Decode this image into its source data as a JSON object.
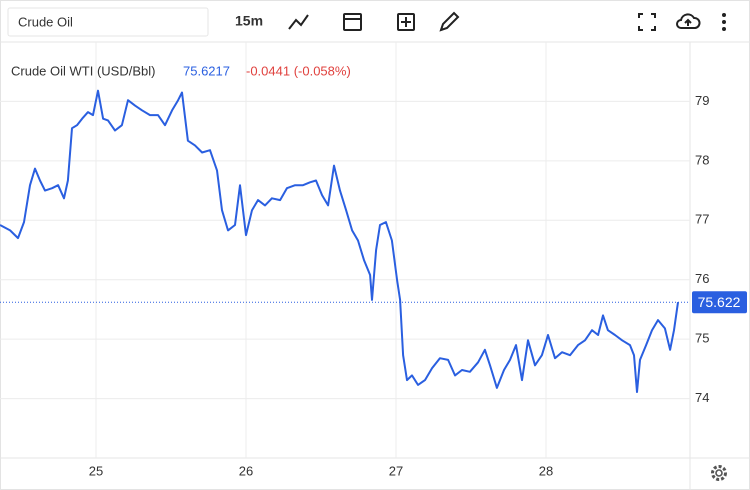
{
  "toolbar": {
    "search": "Crude Oil",
    "interval": "15m"
  },
  "chart_data": {
    "type": "line",
    "title": "Crude Oil WTI (USD/Bbl)",
    "quote": "75.6217",
    "change": "-0.0441 (-0.058%)",
    "color": "#2a5fe0",
    "grid": true,
    "x": [
      24.36,
      24.427,
      24.48,
      24.52,
      24.56,
      24.593,
      24.627,
      24.66,
      24.707,
      24.747,
      24.787,
      24.813,
      24.84,
      24.873,
      24.907,
      24.947,
      24.98,
      25.013,
      25.047,
      25.08,
      25.127,
      25.173,
      25.213,
      25.26,
      25.307,
      25.36,
      25.413,
      25.46,
      25.507,
      25.547,
      25.573,
      25.613,
      25.66,
      25.707,
      25.76,
      25.807,
      25.84,
      25.88,
      25.927,
      25.96,
      26.0,
      26.04,
      26.08,
      26.127,
      26.173,
      26.227,
      26.273,
      26.327,
      26.38,
      26.427,
      26.467,
      26.507,
      26.547,
      26.587,
      26.627,
      26.667,
      26.707,
      26.747,
      26.787,
      26.827,
      26.84,
      26.867,
      26.893,
      26.933,
      26.973,
      27.007,
      27.027,
      27.047,
      27.073,
      27.107,
      27.147,
      27.193,
      27.24,
      27.293,
      27.347,
      27.393,
      27.44,
      27.493,
      27.547,
      27.593,
      27.627,
      27.673,
      27.72,
      27.76,
      27.8,
      27.84,
      27.88,
      27.927,
      27.973,
      28.013,
      28.06,
      28.107,
      28.16,
      28.213,
      28.26,
      28.307,
      28.347,
      28.38,
      28.413,
      28.46,
      28.507,
      28.56,
      28.587,
      28.607,
      28.627,
      28.667,
      28.707,
      28.747,
      28.793,
      28.827,
      28.853,
      28.88
    ],
    "values": [
      76.92,
      76.83,
      76.7,
      76.97,
      77.59,
      77.87,
      77.67,
      77.5,
      77.54,
      77.59,
      77.37,
      77.67,
      78.55,
      78.6,
      78.71,
      78.82,
      78.77,
      79.18,
      78.71,
      78.68,
      78.51,
      78.6,
      79.02,
      78.93,
      78.85,
      78.77,
      78.77,
      78.6,
      78.85,
      79.02,
      79.15,
      78.34,
      78.26,
      78.14,
      78.18,
      77.84,
      77.17,
      76.83,
      76.92,
      77.59,
      76.75,
      77.17,
      77.34,
      77.25,
      77.37,
      77.34,
      77.54,
      77.59,
      77.59,
      77.64,
      77.67,
      77.42,
      77.25,
      77.92,
      77.5,
      77.17,
      76.83,
      76.66,
      76.33,
      76.08,
      75.66,
      76.5,
      76.92,
      76.97,
      76.66,
      75.99,
      75.66,
      74.73,
      74.31,
      74.39,
      74.23,
      74.31,
      74.51,
      74.68,
      74.65,
      74.39,
      74.48,
      74.45,
      74.61,
      74.82,
      74.56,
      74.18,
      74.48,
      74.65,
      74.9,
      74.31,
      74.98,
      74.56,
      74.73,
      75.07,
      74.68,
      74.78,
      74.73,
      74.9,
      74.98,
      75.15,
      75.07,
      75.4,
      75.15,
      75.07,
      74.98,
      74.9,
      74.73,
      74.11,
      74.65,
      74.9,
      75.15,
      75.32,
      75.18,
      74.82,
      75.15,
      75.6217
    ],
    "price_line": {
      "value": 75.6217,
      "label": "75.622"
    },
    "xlim": [
      24.36,
      28.96
    ],
    "xticks": [
      25,
      26,
      27,
      28
    ],
    "ylim": [
      73,
      80
    ],
    "yticks": [
      74,
      75,
      76,
      77,
      78,
      79
    ]
  }
}
